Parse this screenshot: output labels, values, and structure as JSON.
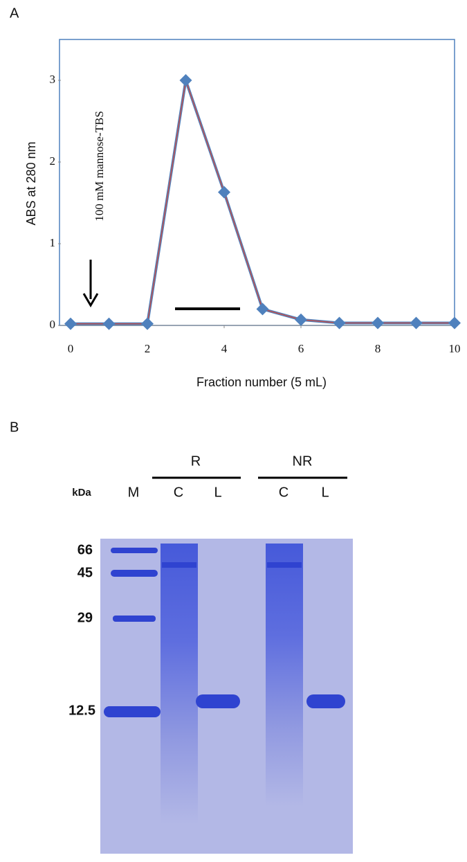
{
  "panel_labels": [
    "A",
    "B"
  ],
  "chart_data": {
    "type": "line",
    "x_label": "Fraction number (5 mL)",
    "y_label": "ABS at 280 nm",
    "annotation": "100 mM mannose-TBS",
    "x": [
      0,
      1,
      2,
      3,
      4,
      5,
      6,
      7,
      8,
      9,
      10
    ],
    "series": [
      {
        "color": "#4f81bd",
        "line_color": "#c0504d",
        "values": [
          0.02,
          0.02,
          0.02,
          3.0,
          1.63,
          0.2,
          0.07,
          0.03,
          0.03,
          0.03,
          0.03
        ]
      }
    ],
    "xlim": [
      0,
      10
    ],
    "ylim": [
      0,
      3.5
    ],
    "xticks": [
      0,
      2,
      4,
      6,
      8,
      10
    ],
    "yticks": [
      0,
      1,
      2,
      3
    ],
    "grid": false
  },
  "gel": {
    "unit_label": "kDa",
    "marker_lane": "M",
    "groups": [
      {
        "label": "R",
        "lanes": [
          "C",
          "L"
        ]
      },
      {
        "label": "NR",
        "lanes": [
          "C",
          "L"
        ]
      }
    ],
    "marker_sizes": [
      "66",
      "45",
      "29",
      "12.5"
    ]
  }
}
